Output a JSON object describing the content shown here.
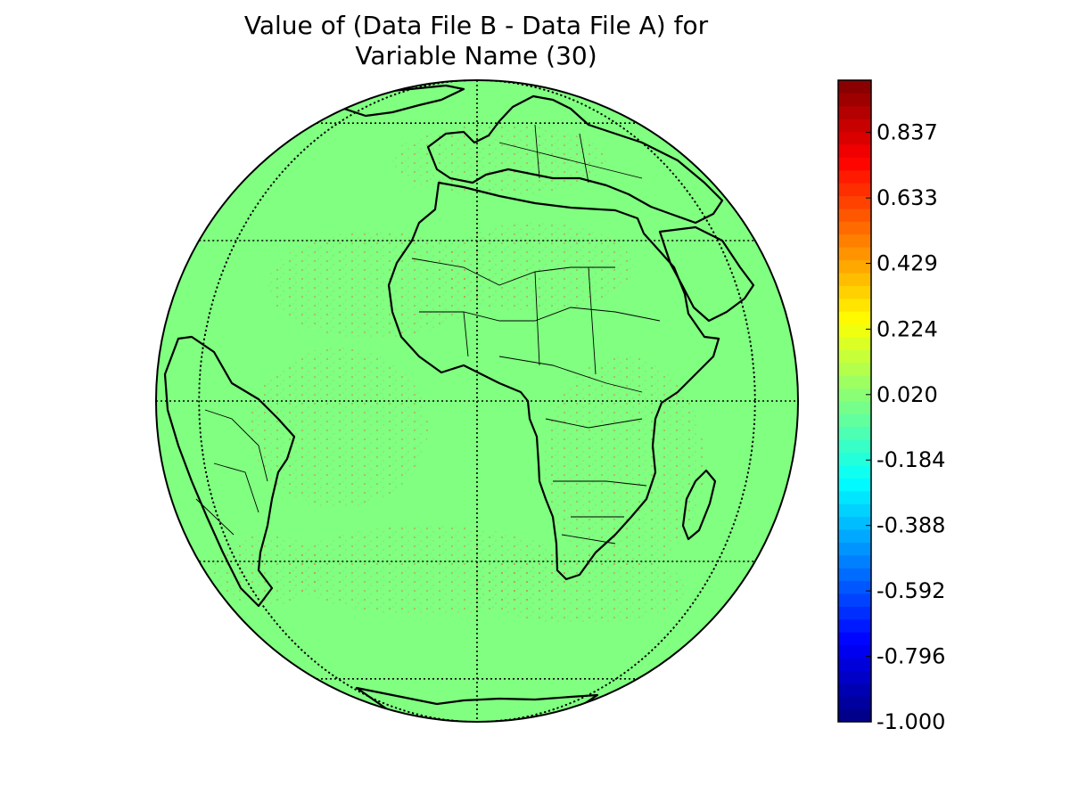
{
  "title": {
    "line1": "Value of (Data File B - Data File A) for",
    "line2": "Variable Name (30)"
  },
  "map": {
    "projection": "orthographic",
    "center_lon": 0,
    "center_lat": 0,
    "fill_color": "#80ff80",
    "graticule": {
      "parallels": [
        -60,
        -30,
        0,
        30,
        60
      ],
      "meridians": [
        -120,
        -60,
        0,
        60,
        120
      ],
      "style": "dotted"
    },
    "coastlines": true,
    "country_borders": true
  },
  "colorbar": {
    "colormap": "jet",
    "vmin": -1.0,
    "vmax": 1.0,
    "ticks": [
      "0.837",
      "0.633",
      "0.429",
      "0.224",
      "0.020",
      "-0.184",
      "-0.388",
      "-0.592",
      "-0.796",
      "-1.000"
    ],
    "tick_values": [
      0.837,
      0.633,
      0.429,
      0.224,
      0.02,
      -0.184,
      -0.388,
      -0.592,
      -0.796,
      -1.0
    ],
    "levels": 50
  },
  "chart_data": {
    "type": "heatmap",
    "title": "Value of (Data File B - Data File A) for Variable Name (30)",
    "background_value": 0.0,
    "value_range": [
      -1.0,
      1.0
    ],
    "colorbar_ticks": [
      0.837,
      0.633,
      0.429,
      0.224,
      0.02,
      -0.184,
      -0.388,
      -0.592,
      -0.796,
      -1.0
    ]
  }
}
